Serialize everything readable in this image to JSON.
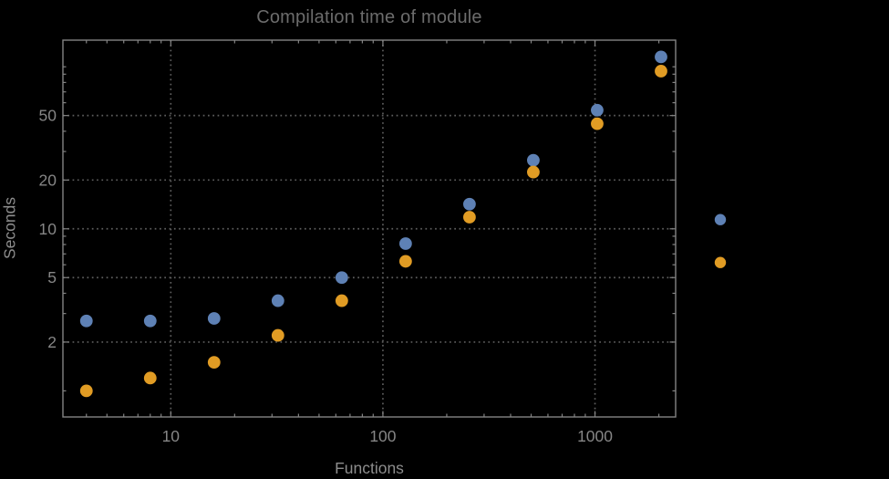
{
  "colors": {
    "background": "#000000",
    "frame": "#848484",
    "grid": "#5e5e5e",
    "title": "#6c6c6c",
    "tick_labels": "#868686",
    "axis_labels": "#8d8d8d",
    "series1": "#5e81b5",
    "series2": "#e19c24"
  },
  "chart_data": {
    "type": "scatter",
    "title": "Compilation time of module",
    "xlabel": "Functions",
    "ylabel": "Seconds",
    "x_scale": "log",
    "y_scale": "log",
    "grid": "dotted, at labeled major ticks only",
    "legend_position": "right of plot, markers only (no visible label text)",
    "x_axis": {
      "label": "Functions",
      "range": [
        3.1,
        2400
      ],
      "major_ticks": [
        10,
        100,
        1000
      ],
      "major_tick_labels": [
        "10",
        "100",
        "1000"
      ],
      "minor_ticks": [
        4,
        5,
        6,
        7,
        8,
        9,
        20,
        30,
        40,
        50,
        60,
        70,
        80,
        90,
        200,
        300,
        400,
        500,
        600,
        700,
        800,
        900,
        2000
      ],
      "gridlines": [
        10,
        100,
        1000
      ]
    },
    "y_axis": {
      "label": "Seconds",
      "range": [
        0.69,
        146
      ],
      "major_ticks": [
        2,
        5,
        10,
        20,
        50
      ],
      "major_tick_labels": [
        "2",
        "5",
        "10",
        "20",
        "50"
      ],
      "minor_ticks": [
        1,
        3,
        4,
        6,
        7,
        8,
        9,
        30,
        40,
        60,
        70,
        80,
        90,
        100
      ],
      "gridlines": [
        2,
        5,
        10,
        20,
        50
      ]
    },
    "x": [
      4,
      8,
      16,
      32,
      64,
      128,
      256,
      512,
      1024,
      2048
    ],
    "series": [
      {
        "name": "series-1",
        "color": "#5e81b5",
        "values": [
          2.7,
          2.7,
          2.8,
          3.6,
          5.0,
          8.1,
          14.2,
          26.5,
          54,
          115
        ]
      },
      {
        "name": "series-2",
        "color": "#e19c24",
        "values": [
          1.0,
          1.2,
          1.5,
          2.2,
          3.6,
          6.3,
          11.8,
          22.4,
          44.5,
          94
        ]
      }
    ],
    "legend_markers": [
      {
        "series": "series-1",
        "color": "#5e81b5"
      },
      {
        "series": "series-2",
        "color": "#e19c24"
      }
    ]
  }
}
